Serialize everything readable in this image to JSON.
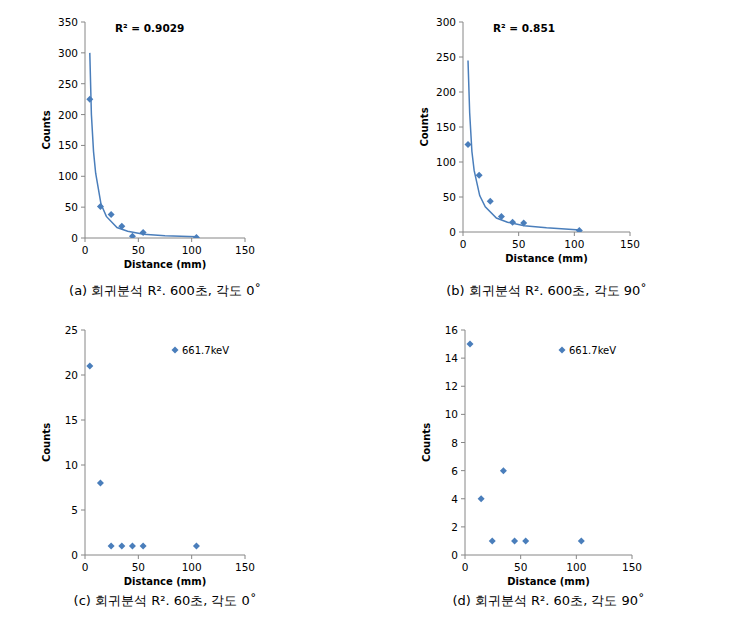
{
  "chart_data": [
    {
      "type": "scatter",
      "title": "(a) 회귀분석 R². 600초, 각도 0˚",
      "x_label": "Distance (mm)",
      "y_label": "Counts",
      "annotation": "R² = 0.9029",
      "xlim": [
        0,
        150
      ],
      "xticks": [
        0,
        50,
        100,
        150
      ],
      "ylim": [
        0,
        350
      ],
      "yticks": [
        0,
        50,
        100,
        150,
        200,
        250,
        300,
        350
      ],
      "series": [
        {
          "type": "scatter",
          "marker": "diamond",
          "color": "#4a7ebb",
          "x": [
            4.5,
            14.5,
            24.5,
            34.5,
            44.5,
            54.5,
            104.5
          ],
          "values": [
            225,
            51,
            38,
            19,
            3,
            9,
            1
          ]
        },
        {
          "type": "line",
          "line_style": "solid",
          "color": "#4a7ebb",
          "x": [
            4.5,
            6,
            8,
            10,
            15,
            20,
            30,
            40,
            55,
            75,
            105
          ],
          "values": [
            300,
            200,
            140,
            105,
            55,
            35,
            17,
            11,
            6,
            3.5,
            2
          ]
        }
      ]
    },
    {
      "type": "scatter",
      "title": "(b) 회귀분석 R². 600초, 각도 90˚",
      "x_label": "Distance (mm)",
      "y_label": "Counts",
      "annotation": "R² = 0.851",
      "xlim": [
        0,
        150
      ],
      "xticks": [
        0,
        50,
        100,
        150
      ],
      "ylim": [
        0,
        300
      ],
      "yticks": [
        0,
        50,
        100,
        150,
        200,
        250,
        300
      ],
      "series": [
        {
          "type": "scatter",
          "marker": "diamond",
          "color": "#4a7ebb",
          "x": [
            4.5,
            14.5,
            24.5,
            34.5,
            44.5,
            54.5,
            104.5
          ],
          "values": [
            125,
            81,
            44,
            22,
            14,
            13,
            2
          ]
        },
        {
          "type": "line",
          "line_style": "solid",
          "color": "#4a7ebb",
          "x": [
            4.5,
            6,
            8,
            10,
            15,
            20,
            30,
            40,
            55,
            75,
            105
          ],
          "values": [
            245,
            170,
            115,
            88,
            52,
            36,
            20,
            14,
            9,
            6,
            3
          ]
        }
      ]
    },
    {
      "type": "scatter",
      "title": "(c) 회귀분석 R². 60초, 각도 0˚",
      "x_label": "Distance (mm)",
      "y_label": "Counts",
      "legend": "top-right",
      "xlim": [
        0,
        150
      ],
      "xticks": [
        0,
        50,
        100,
        150
      ],
      "ylim": [
        0,
        25
      ],
      "yticks": [
        0,
        5,
        10,
        15,
        20,
        25
      ],
      "series": [
        {
          "name": "661.7keV",
          "type": "scatter",
          "marker": "diamond",
          "color": "#4a7ebb",
          "x": [
            4.5,
            14.5,
            24.5,
            34.5,
            44.5,
            54.5,
            104.5
          ],
          "values": [
            21,
            8,
            1,
            1,
            1,
            1,
            1
          ]
        }
      ]
    },
    {
      "type": "scatter",
      "title": "(d) 회귀분석 R². 60초, 각도 90˚",
      "x_label": "Distance (mm)",
      "y_label": "Counts",
      "legend": "top-right",
      "xlim": [
        0,
        150
      ],
      "xticks": [
        0,
        50,
        100,
        150
      ],
      "ylim": [
        0,
        16
      ],
      "yticks": [
        0,
        2,
        4,
        6,
        8,
        10,
        12,
        14,
        16
      ],
      "series": [
        {
          "name": "661.7keV",
          "type": "scatter",
          "marker": "diamond",
          "color": "#4a7ebb",
          "x": [
            4.5,
            14.5,
            24.5,
            34.5,
            44.5,
            54.5,
            104.5
          ],
          "values": [
            15,
            4,
            1,
            6,
            1,
            1,
            1
          ]
        }
      ]
    }
  ]
}
